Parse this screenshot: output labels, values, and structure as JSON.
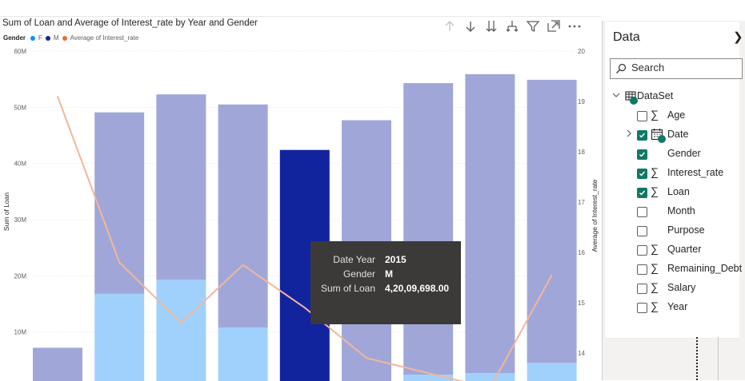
{
  "visual": {
    "title": "Sum of Loan and Average of Interest_rate by Year and Gender",
    "legend": {
      "label": "Gender",
      "items": [
        {
          "name": "F",
          "color": "#118dff"
        },
        {
          "name": "M",
          "color": "#12239e"
        },
        {
          "name": "Average of Interest_rate",
          "color": "#e66c37"
        }
      ]
    },
    "header_icons": [
      "drill-up-icon",
      "drill-down-icon",
      "expand-all-down-icon",
      "expand-hierarchy-icon",
      "filter-icon",
      "focus-mode-icon",
      "more-options-icon"
    ]
  },
  "tooltip": {
    "rows": [
      {
        "key": "Date Year",
        "value": "2015"
      },
      {
        "key": "Gender",
        "value": "M"
      },
      {
        "key": "Sum of Loan",
        "value": "4,20,09,698.00"
      }
    ]
  },
  "chart_data": {
    "type": "bar",
    "stacked": true,
    "title": "Sum of Loan and Average of Interest_rate by Year and Gender",
    "xlabel": "",
    "ylabel": "Sum of Loan",
    "y2label": "Average of Interest_rate",
    "ylim": [
      0,
      60000000
    ],
    "y2lim": [
      13.3,
      20
    ],
    "yticks": [
      "10M",
      "20M",
      "30M",
      "40M",
      "50M",
      "60M"
    ],
    "y2ticks": [
      "14",
      "15",
      "16",
      "17",
      "18",
      "19",
      "20"
    ],
    "grid": true,
    "legend_position": "top-left",
    "highlighted_index": 4,
    "series": [
      {
        "name": "F",
        "color": "#a0d1fd",
        "values": [
          1000000,
          16800000,
          19300000,
          10800000,
          400000,
          1200000,
          2400000,
          2700000,
          4500000
        ]
      },
      {
        "name": "M",
        "color": "#a0a7d8",
        "highlight_color": "#12239e",
        "values": [
          6200000,
          32300000,
          33000000,
          39700000,
          42009698,
          46500000,
          51900000,
          53200000,
          50400000
        ]
      }
    ],
    "line": {
      "name": "Average of Interest_rate",
      "color": "#f2b69c",
      "values": [
        19.1,
        15.8,
        14.6,
        15.75,
        14.9,
        13.9,
        13.6,
        13.3,
        15.55
      ]
    }
  },
  "panel": {
    "title": "Data",
    "search_placeholder": "Search",
    "dataset": "DataSet",
    "fields": [
      {
        "name": "Age",
        "sigma": true,
        "checked": false,
        "expand": false
      },
      {
        "name": "Date",
        "sigma": false,
        "checked": true,
        "expand": true,
        "icon": "calendar-icon"
      },
      {
        "name": "Gender",
        "sigma": false,
        "checked": true,
        "expand": false
      },
      {
        "name": "Interest_rate",
        "sigma": true,
        "checked": true,
        "expand": false
      },
      {
        "name": "Loan",
        "sigma": true,
        "checked": true,
        "expand": false
      },
      {
        "name": "Month",
        "sigma": false,
        "checked": false,
        "expand": false
      },
      {
        "name": "Purpose",
        "sigma": false,
        "checked": false,
        "expand": false
      },
      {
        "name": "Quarter",
        "sigma": true,
        "checked": false,
        "expand": false
      },
      {
        "name": "Remaining_Debt",
        "sigma": true,
        "checked": false,
        "expand": false
      },
      {
        "name": "Salary",
        "sigma": true,
        "checked": false,
        "expand": false
      },
      {
        "name": "Year",
        "sigma": true,
        "checked": false,
        "expand": false
      }
    ]
  }
}
